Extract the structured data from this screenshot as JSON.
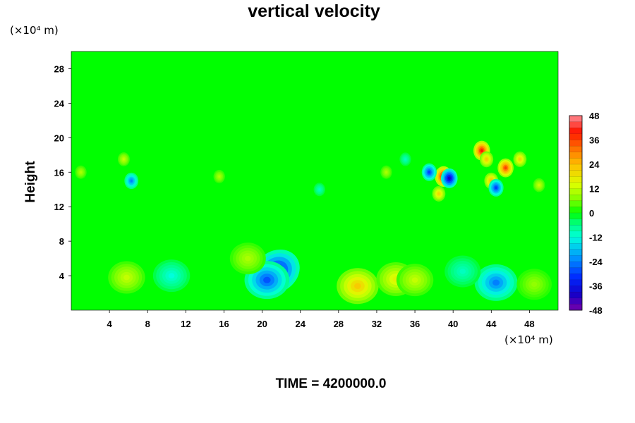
{
  "chart_data": {
    "type": "heatmap",
    "title": "vertical velocity",
    "ylabel": "Height",
    "y_unit_label": "(×10⁴ m)",
    "x_unit_label": "(×10⁴ m)",
    "xlim": [
      0,
      51
    ],
    "ylim": [
      0,
      30
    ],
    "x_ticks": [
      4,
      8,
      12,
      16,
      20,
      24,
      28,
      32,
      36,
      40,
      44,
      48
    ],
    "y_ticks": [
      4,
      8,
      12,
      16,
      20,
      24,
      28
    ],
    "colorbar": {
      "range": [
        -48,
        48
      ],
      "ticks": [
        48,
        36,
        24,
        12,
        0,
        -12,
        -24,
        -36,
        -48
      ]
    },
    "background_value": 0,
    "features": [
      {
        "x": 21.5,
        "y": 4.5,
        "value": -36
      },
      {
        "x": 20.5,
        "y": 3.5,
        "value": -28
      },
      {
        "x": 30,
        "y": 2.8,
        "value": 22
      },
      {
        "x": 34,
        "y": 3.6,
        "value": 16
      },
      {
        "x": 36,
        "y": 3.5,
        "value": 12
      },
      {
        "x": 5.8,
        "y": 3.8,
        "value": 12
      },
      {
        "x": 18.5,
        "y": 6,
        "value": 10
      },
      {
        "x": 44.5,
        "y": 3.2,
        "value": -24
      },
      {
        "x": 10.5,
        "y": 4,
        "value": -12
      },
      {
        "x": 41,
        "y": 4.5,
        "value": -10
      },
      {
        "x": 48.5,
        "y": 3,
        "value": 8
      },
      {
        "x": 39,
        "y": 15.5,
        "value": 44
      },
      {
        "x": 39.6,
        "y": 15.3,
        "value": -40
      },
      {
        "x": 37.5,
        "y": 16,
        "value": -30
      },
      {
        "x": 43,
        "y": 18.5,
        "value": 40
      },
      {
        "x": 45.5,
        "y": 16.5,
        "value": 36
      },
      {
        "x": 44,
        "y": 15,
        "value": 24
      },
      {
        "x": 44.5,
        "y": 14.2,
        "value": -30
      },
      {
        "x": 43.5,
        "y": 17.5,
        "value": 22
      },
      {
        "x": 38.5,
        "y": 13.5,
        "value": 20
      },
      {
        "x": 6.3,
        "y": 15,
        "value": -24
      },
      {
        "x": 5.5,
        "y": 17.5,
        "value": 12
      },
      {
        "x": 1,
        "y": 16,
        "value": 10
      },
      {
        "x": 15.5,
        "y": 15.5,
        "value": 10
      },
      {
        "x": 26,
        "y": 14,
        "value": -10
      },
      {
        "x": 33,
        "y": 16,
        "value": 10
      },
      {
        "x": 47,
        "y": 17.5,
        "value": 20
      },
      {
        "x": 49,
        "y": 14.5,
        "value": 12
      },
      {
        "x": 35,
        "y": 17.5,
        "value": -10
      }
    ]
  }
}
